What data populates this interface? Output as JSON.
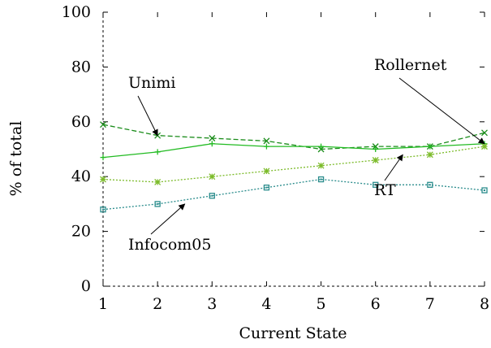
{
  "chart_data": {
    "type": "line",
    "xlabel": "Current State",
    "ylabel": "% of total",
    "xlim": [
      1,
      8
    ],
    "ylim": [
      0,
      100
    ],
    "x": [
      1,
      2,
      3,
      4,
      5,
      6,
      7,
      8
    ],
    "xticks": [
      1,
      2,
      3,
      4,
      5,
      6,
      7,
      8
    ],
    "yticks": [
      0,
      20,
      40,
      60,
      80,
      100
    ],
    "grid": false,
    "legend": "none",
    "series": [
      {
        "name": "Unimi",
        "color": "#1a8c1a",
        "dash": "dashed",
        "marker": "x",
        "values": [
          59,
          55,
          54,
          53,
          50,
          51,
          51,
          56
        ]
      },
      {
        "name": "Rollernet",
        "color": "#22bb22",
        "dash": "solid",
        "marker": "plus",
        "values": [
          47,
          49,
          52,
          51,
          51,
          50,
          51,
          52
        ]
      },
      {
        "name": "RT",
        "color": "#7cbb2a",
        "dash": "dotted",
        "marker": "star",
        "values": [
          39,
          38,
          40,
          42,
          44,
          46,
          48,
          51
        ]
      },
      {
        "name": "Infocom05",
        "color": "#2a8c8c",
        "dash": "dotted",
        "marker": "square",
        "values": [
          28,
          30,
          33,
          36,
          39,
          37,
          37,
          35
        ]
      }
    ],
    "annotations": [
      {
        "text": "Unimi",
        "arrow_to": [
          2,
          55
        ]
      },
      {
        "text": "Rollernet",
        "arrow_to": [
          8,
          52
        ]
      },
      {
        "text": "RT",
        "arrow_to": [
          6.5,
          48
        ]
      },
      {
        "text": "Infocom05",
        "arrow_to": [
          2.5,
          30
        ]
      }
    ]
  }
}
